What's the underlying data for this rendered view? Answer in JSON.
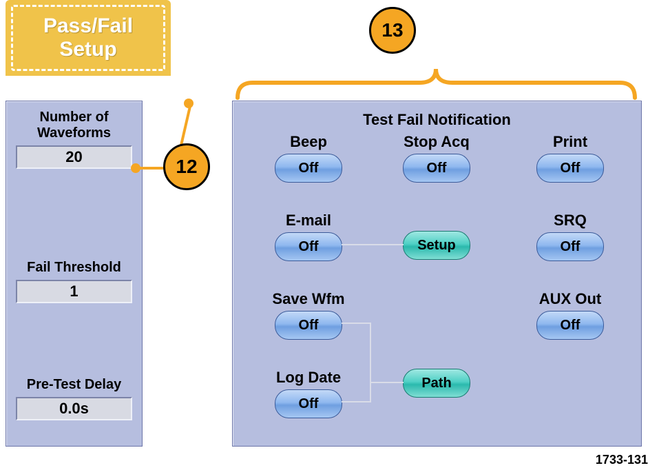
{
  "tab": {
    "title": "Pass/Fail\nSetup"
  },
  "callouts": {
    "c12": "12",
    "c13": "13"
  },
  "left": {
    "waveforms_label": "Number of\nWaveforms",
    "waveforms_value": "20",
    "fail_threshold_label": "Fail Threshold",
    "fail_threshold_value": "1",
    "pretest_delay_label": "Pre-Test Delay",
    "pretest_delay_value": "0.0s"
  },
  "notif": {
    "title": "Test  Fail Notification",
    "beep_label": "Beep",
    "beep_value": "Off",
    "stopacq_label": "Stop Acq",
    "stopacq_value": "Off",
    "print_label": "Print",
    "print_value": "Off",
    "email_label": "E-mail",
    "email_value": "Off",
    "setup_button": "Setup",
    "srq_label": "SRQ",
    "srq_value": "Off",
    "savewfm_label": "Save Wfm",
    "savewfm_value": "Off",
    "path_button": "Path",
    "auxout_label": "AUX Out",
    "auxout_value": "Off",
    "logdate_label": "Log Date",
    "logdate_value": "Off"
  },
  "figure_id": "1733-131",
  "colors": {
    "panel_bg": "#b6bedf",
    "callout_fill": "#f5a623",
    "callout_border": "#000000",
    "pill_off_top": "#c3d9f7",
    "pill_off_mid": "#8fb8ef",
    "pill_setup_top": "#9fe8e2",
    "pill_setup_mid": "#4fd0c5"
  }
}
